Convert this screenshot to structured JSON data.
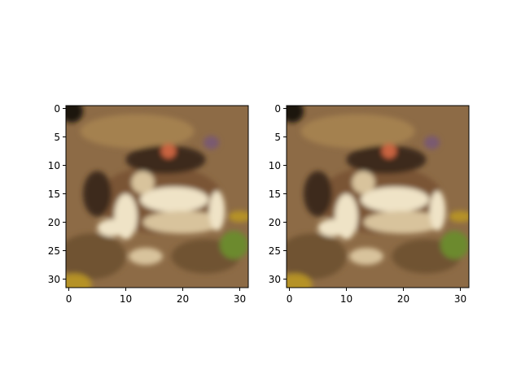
{
  "chart_data": [
    {
      "type": "heatmap",
      "content": "pixelated image of a frog",
      "title": "",
      "xlabel": "",
      "ylabel": "",
      "xlim": [
        -0.5,
        31.5
      ],
      "ylim": [
        31.5,
        -0.5
      ],
      "xticks": [
        0,
        10,
        20,
        30
      ],
      "yticks": [
        0,
        5,
        10,
        15,
        20,
        25,
        30
      ],
      "grid": false
    },
    {
      "type": "heatmap",
      "content": "pixelated image of a frog",
      "title": "",
      "xlabel": "",
      "ylabel": "",
      "xlim": [
        -0.5,
        31.5
      ],
      "ylim": [
        31.5,
        -0.5
      ],
      "xticks": [
        0,
        10,
        20,
        30
      ],
      "yticks": [
        0,
        5,
        10,
        15,
        20,
        25,
        30
      ],
      "grid": false
    }
  ],
  "colors": {
    "background": "#8d6b46",
    "ground_dark": "#6f5233",
    "ground_light": "#a4814f",
    "frog_dark": "#3e2a1c",
    "frog_mid": "#7a5535",
    "frog_light": "#efe3c6",
    "frog_cream": "#d8c39c",
    "eye_red": "#c9643f",
    "eye_purple": "#7a5a70",
    "corner_black": "#1e140c",
    "corner_yellow": "#b59226",
    "grass_green": "#6c8a2e"
  }
}
